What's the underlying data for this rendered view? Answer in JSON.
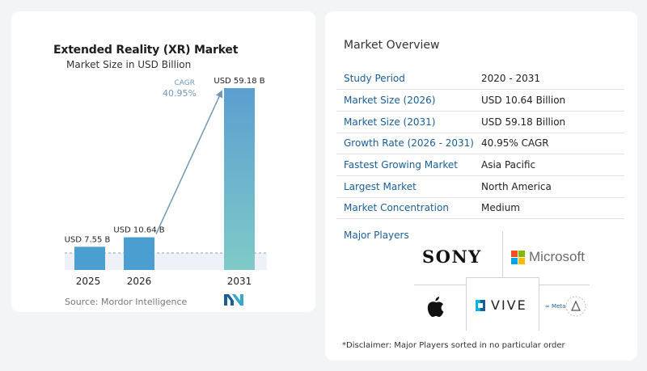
{
  "chart_data": {
    "type": "bar",
    "title": "Extended Reality (XR) Market",
    "subtitle": "Market Size in USD Billion",
    "categories": [
      "2025",
      "2026",
      "2031"
    ],
    "values": [
      7.55,
      10.64,
      59.18
    ],
    "value_labels": [
      "USD 7.55 B",
      "USD 10.64 B",
      "USD 59.18 B"
    ],
    "cagr_label": "CAGR",
    "cagr_value": "40.95%",
    "ylim": [
      0,
      59.18
    ],
    "grid": false,
    "colors": {
      "bar_2025": "#4a9fd0",
      "bar_2026": "#4a9fd0",
      "bar_2031_top": "#5a9fd0",
      "bar_2031_bottom": "#7fcac8",
      "cagr": "#6f98b7",
      "baseline": "#8aa4bf"
    }
  },
  "source": "Source:  Mordor Intelligence",
  "source_logo_icon": "mordor-intelligence-logo-icon",
  "overview": {
    "title": "Market Overview",
    "rows": [
      {
        "key": "Study Period",
        "value": "2020 - 2031"
      },
      {
        "key": "Market Size (2026)",
        "value": "USD 10.64 Billion"
      },
      {
        "key": "Market Size (2031)",
        "value": "USD 59.18 Billion"
      },
      {
        "key": "Growth Rate (2026 - 2031)",
        "value": "40.95% CAGR"
      },
      {
        "key": "Fastest Growing Market",
        "value": "Asia Pacific"
      },
      {
        "key": "Largest Market",
        "value": "North America"
      },
      {
        "key": "Market Concentration",
        "value": "Medium"
      }
    ]
  },
  "players": {
    "title": "Major Players",
    "sony": "SONY",
    "microsoft": "Microsoft",
    "apple_icon": "apple-logo-icon",
    "vive": "VIVE",
    "meta": "∞ Meta",
    "reality_labs_icon": "reality-labs-logo-icon"
  },
  "disclaimer": "*Disclaimer: Major Players sorted in no particular order"
}
